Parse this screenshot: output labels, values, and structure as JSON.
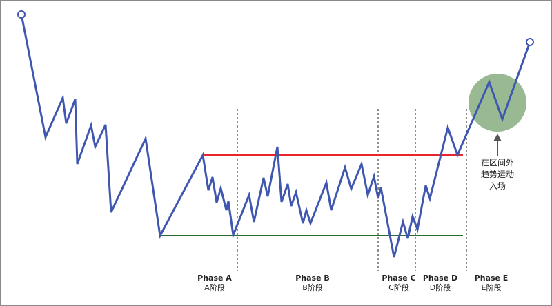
{
  "colors": {
    "price_line": "#3f57b0",
    "resistance": "#e8262a",
    "support": "#2e6b30",
    "highlight": "#7fa878",
    "divider": "#444444"
  },
  "phases": [
    {
      "title": "Phase A",
      "subtitle": "A阶段"
    },
    {
      "title": "Phase B",
      "subtitle": "B阶段"
    },
    {
      "title": "Phase C",
      "subtitle": "C阶段"
    },
    {
      "title": "Phase D",
      "subtitle": "D阶段"
    },
    {
      "title": "Phase E",
      "subtitle": "E阶段"
    }
  ],
  "annotation": {
    "lines": [
      "在区间外",
      "趋势运动",
      "入场"
    ],
    "icon": "arrow-up-icon"
  }
}
